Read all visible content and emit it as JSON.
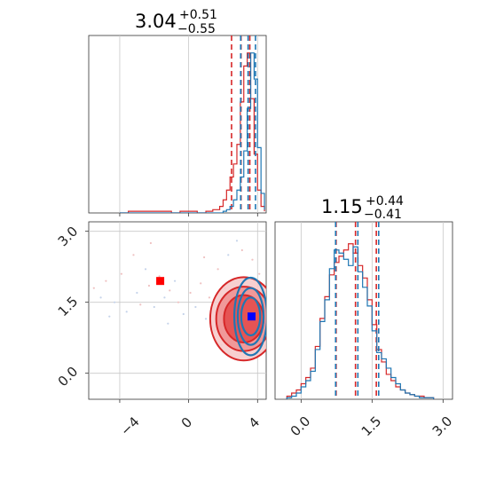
{
  "chart_data": {
    "type": "corner",
    "colors": {
      "series_a": "#d62728",
      "series_b": "#1f77b4",
      "marker_a": "#ff0000",
      "marker_b": "#0000ff"
    },
    "grid": true,
    "params": [
      {
        "title_value": "3.04",
        "title_plus": "+0.51",
        "title_minus": "−0.55",
        "lim": [
          -5.8,
          4.5
        ],
        "ticks": [
          -4,
          0,
          4
        ],
        "tick_labels": [
          "−4",
          "0",
          "4"
        ]
      },
      {
        "title_value": "1.15",
        "title_plus": "+0.44",
        "title_minus": "−0.41",
        "lim": [
          -0.55,
          3.2
        ],
        "ticks": [
          0.0,
          1.5,
          3.0
        ],
        "tick_labels": [
          "0.0",
          "1.5",
          "3.0"
        ]
      }
    ],
    "hist1": {
      "bins_x": [
        -4.0,
        -3.5,
        -3.0,
        -2.5,
        -2.0,
        -1.5,
        -1.0,
        -0.5,
        0.0,
        0.5,
        1.0,
        1.4,
        1.8,
        2.0,
        2.2,
        2.4,
        2.6,
        2.8,
        3.0,
        3.2,
        3.4,
        3.6,
        3.8,
        4.0,
        4.2,
        4.4
      ],
      "series": [
        {
          "color_key": "series_a",
          "counts": [
            0,
            1,
            1,
            1,
            1,
            1,
            0,
            1,
            1,
            0,
            1,
            2,
            4,
            8,
            14,
            22,
            30,
            42,
            68,
            90,
            98,
            70,
            36,
            14,
            4,
            1
          ],
          "quantiles": [
            2.49,
            3.04,
            3.55
          ]
        },
        {
          "color_key": "series_b",
          "counts": [
            0,
            0,
            0,
            0,
            0,
            0,
            0,
            0,
            0,
            0,
            0,
            0,
            0,
            1,
            2,
            4,
            8,
            14,
            22,
            38,
            64,
            98,
            82,
            40,
            12,
            2
          ],
          "quantiles": [
            3.02,
            3.45,
            3.88
          ]
        }
      ]
    },
    "hist2": {
      "bins_x": [
        -0.3,
        -0.2,
        -0.1,
        0.0,
        0.1,
        0.2,
        0.3,
        0.4,
        0.5,
        0.6,
        0.7,
        0.8,
        0.9,
        1.0,
        1.1,
        1.2,
        1.3,
        1.4,
        1.5,
        1.6,
        1.7,
        1.8,
        1.9,
        2.0,
        2.1,
        2.2,
        2.3,
        2.4,
        2.5,
        2.6,
        2.7,
        2.8
      ],
      "series": [
        {
          "color_key": "series_a",
          "counts": [
            2,
            4,
            6,
            10,
            14,
            20,
            34,
            52,
            66,
            80,
            88,
            92,
            96,
            100,
            94,
            86,
            78,
            64,
            48,
            32,
            24,
            16,
            12,
            8,
            6,
            4,
            3,
            2,
            2,
            1,
            1
          ],
          "quantiles": [
            0.74,
            1.15,
            1.59
          ]
        },
        {
          "color_key": "series_b",
          "counts": [
            1,
            2,
            4,
            8,
            12,
            18,
            32,
            50,
            64,
            84,
            96,
            94,
            90,
            86,
            98,
            82,
            72,
            60,
            44,
            30,
            26,
            20,
            14,
            10,
            6,
            4,
            3,
            2,
            1,
            1,
            1
          ],
          "quantiles": [
            0.73,
            1.2,
            1.64
          ]
        }
      ]
    },
    "joint": {
      "series": [
        {
          "color_key": "series_a",
          "center": [
            3.2,
            1.15
          ],
          "contour_sd": [
            [
              1.15,
              0.5
            ],
            [
              1.6,
              0.68
            ],
            [
              1.95,
              0.88
            ]
          ],
          "marker": [
            -1.65,
            1.95
          ],
          "marker_color_key": "marker_a"
        },
        {
          "color_key": "series_b",
          "center": [
            3.6,
            1.2
          ],
          "contour_sd": [
            [
              0.55,
              0.4
            ],
            [
              0.75,
              0.6
            ],
            [
              0.95,
              0.82
            ]
          ],
          "marker": [
            3.65,
            1.2
          ],
          "marker_color_key": "marker_b"
        }
      ],
      "scatter": [
        [
          -5.5,
          1.8
        ],
        [
          -5.1,
          1.6
        ],
        [
          -4.8,
          1.95
        ],
        [
          -4.3,
          1.5
        ],
        [
          -3.9,
          2.1
        ],
        [
          -3.6,
          1.3
        ],
        [
          -3.2,
          2.5
        ],
        [
          -3.0,
          1.7
        ],
        [
          -2.8,
          1.45
        ],
        [
          -2.5,
          2.2
        ],
        [
          -2.3,
          1.85
        ],
        [
          -2.0,
          1.4
        ],
        [
          -1.7,
          2.05
        ],
        [
          -1.4,
          1.6
        ],
        [
          -1.1,
          1.75
        ],
        [
          -0.8,
          1.95
        ],
        [
          -0.6,
          1.5
        ],
        [
          -0.3,
          1.25
        ],
        [
          0.1,
          1.7
        ],
        [
          0.4,
          1.4
        ],
        [
          0.7,
          1.9
        ],
        [
          1.0,
          1.15
        ],
        [
          1.2,
          1.6
        ],
        [
          1.5,
          0.9
        ],
        [
          1.7,
          2.2
        ],
        [
          1.9,
          0.6
        ],
        [
          2.1,
          1.8
        ],
        [
          2.3,
          2.5
        ],
        [
          2.5,
          0.35
        ],
        [
          2.8,
          2.8
        ],
        [
          3.1,
          2.6
        ],
        [
          3.4,
          0.3
        ],
        [
          3.7,
          2.4
        ],
        [
          3.9,
          0.5
        ],
        [
          4.1,
          2.1
        ],
        [
          4.3,
          1.7
        ],
        [
          -2.2,
          2.75
        ],
        [
          -4.6,
          1.2
        ],
        [
          0.9,
          2.45
        ],
        [
          -1.2,
          1.05
        ]
      ]
    }
  }
}
